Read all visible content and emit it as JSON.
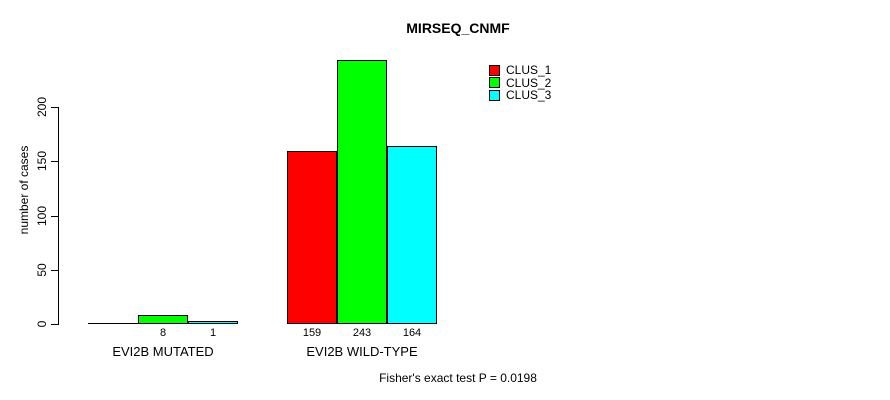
{
  "title": "MIRSEQ_CNMF",
  "footnote": "Fisher's exact test P = 0.0198",
  "chart_data": {
    "type": "bar",
    "grouped": true,
    "title": "MIRSEQ_CNMF",
    "ylabel": "number of cases",
    "xlabel": "",
    "categories": [
      "EVI2B MUTATED",
      "EVI2B WILD-TYPE"
    ],
    "series": [
      {
        "name": "CLUS_1",
        "color": "#ff0000",
        "values": [
          0,
          159
        ]
      },
      {
        "name": "CLUS_2",
        "color": "#00ff00",
        "values": [
          8,
          243
        ]
      },
      {
        "name": "CLUS_3",
        "color": "#00ffff",
        "values": [
          1,
          164
        ]
      }
    ],
    "bar_labels": [
      [
        "",
        "8",
        "1"
      ],
      [
        "159",
        "243",
        "164"
      ]
    ],
    "yticks": [
      0,
      50,
      100,
      150,
      200
    ],
    "ylim": [
      0,
      200
    ],
    "grid": false,
    "legend_position": "top-right-inside",
    "annotation": "Fisher's exact test P = 0.0198"
  },
  "legend": {
    "items": [
      {
        "label": "CLUS_1",
        "color": "#ff0000"
      },
      {
        "label": "CLUS_2",
        "color": "#00ff00"
      },
      {
        "label": "CLUS_3",
        "color": "#00ffff"
      }
    ]
  }
}
